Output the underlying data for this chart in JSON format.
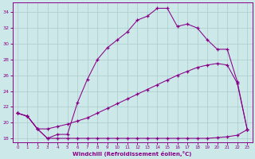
{
  "xlabel": "Windchill (Refroidissement éolien,°C)",
  "background_color": "#cce8e8",
  "grid_color": "#aacccc",
  "line_color": "#880088",
  "ylim": [
    17.5,
    35.2
  ],
  "xlim": [
    -0.5,
    23.5
  ],
  "yticks": [
    18,
    20,
    22,
    24,
    26,
    28,
    30,
    32,
    34
  ],
  "x_ticks": [
    0,
    1,
    2,
    3,
    4,
    5,
    6,
    7,
    8,
    9,
    10,
    11,
    12,
    13,
    14,
    15,
    16,
    17,
    18,
    19,
    20,
    21,
    22,
    23
  ],
  "line1_y": [
    21.2,
    20.8,
    19.2,
    18.0,
    18.0,
    18.0,
    18.0,
    18.0,
    18.0,
    18.0,
    18.0,
    18.0,
    18.0,
    18.0,
    18.0,
    18.0,
    18.0,
    18.0,
    18.0,
    18.0,
    18.1,
    18.2,
    18.4,
    19.1
  ],
  "line2_y": [
    21.2,
    20.8,
    19.2,
    19.2,
    19.5,
    19.8,
    20.2,
    20.6,
    21.2,
    21.8,
    22.4,
    23.0,
    23.6,
    24.2,
    24.8,
    25.4,
    26.0,
    26.5,
    27.0,
    27.3,
    27.5,
    27.3,
    25.0,
    19.1
  ],
  "line3_y": [
    21.2,
    20.8,
    19.2,
    18.0,
    18.5,
    18.5,
    22.5,
    25.5,
    28.0,
    29.5,
    30.5,
    31.5,
    33.0,
    33.5,
    34.5,
    34.5,
    32.2,
    32.5,
    32.0,
    30.5,
    29.3,
    29.3,
    25.2,
    19.1
  ]
}
